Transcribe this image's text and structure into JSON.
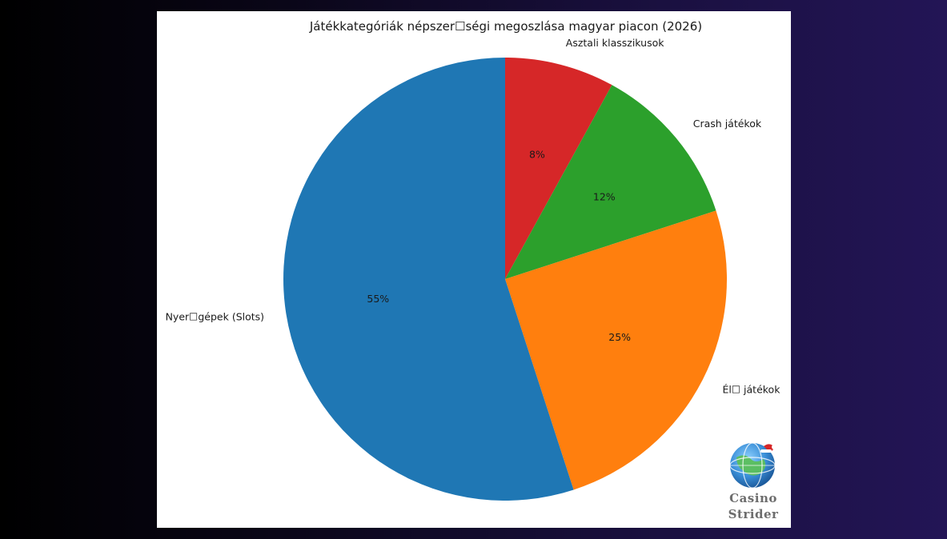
{
  "chart_data": {
    "type": "pie",
    "title": "Játékkategóriák népszer☐ségi megoszlása magyar piacon (2026)",
    "categories": [
      "Asztali klasszikusok",
      "Crash játékok",
      "Él☐ játékok",
      "Nyer☐gépek (Slots)"
    ],
    "values": [
      8,
      12,
      25,
      55
    ],
    "value_labels": [
      "8%",
      "12%",
      "25%",
      "55%"
    ],
    "colors": [
      "#d62728",
      "#2ca02c",
      "#ff7f0e",
      "#1f77b4"
    ],
    "start_angle": "top",
    "direction": "clockwise",
    "legend": "none"
  },
  "logo": {
    "line1": "Casino",
    "line2": "Strider",
    "icon": "globe-with-santa-hat-icon"
  }
}
